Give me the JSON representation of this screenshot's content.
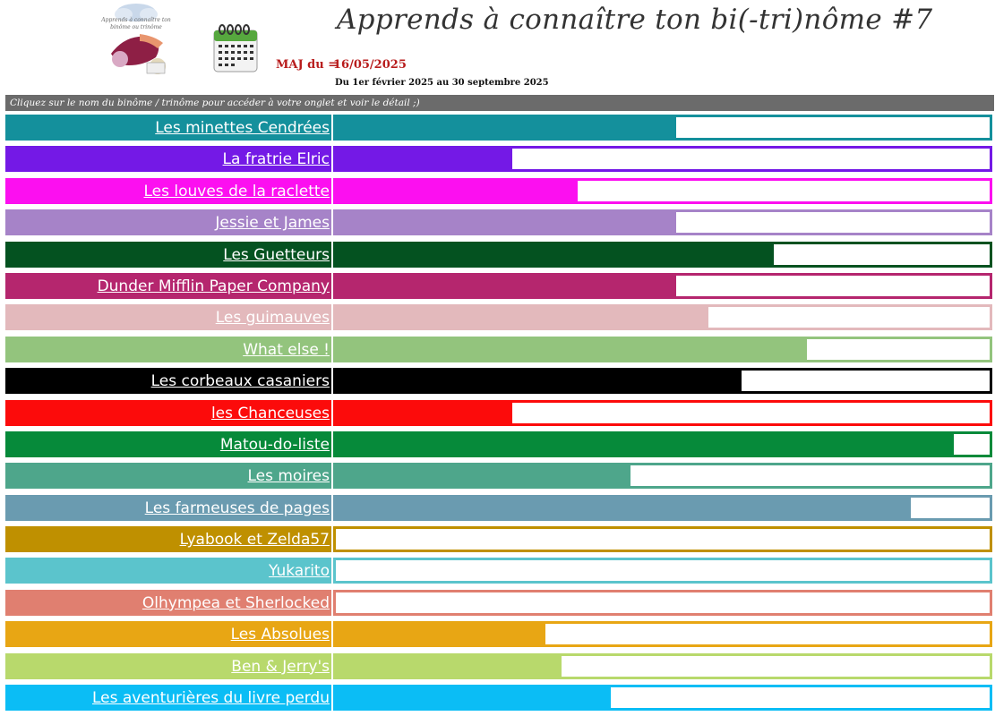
{
  "header": {
    "title": "Apprends à connaître ton bi(-tri)nôme #7",
    "maj_label": "MAJ du =",
    "maj_date": "16/05/2025",
    "period": "Du 1er février 2025 au 30 septembre 2025",
    "instruction": "Cliquez sur le nom du binôme / trinôme pour accéder à votre onglet et voir le détail ;)"
  },
  "icons": {
    "logo": "challenge-logo",
    "calendar": "calendar-icon"
  },
  "teams": [
    {
      "name": "Les minettes Cendrées",
      "progress": 0.52,
      "color": "#14909c"
    },
    {
      "name": "La fratrie Elric",
      "progress": 0.27,
      "color": "#7419e6"
    },
    {
      "name": "Les louves de la raclette",
      "progress": 0.37,
      "color": "#fc0ff0"
    },
    {
      "name": "Jessie et James",
      "progress": 0.52,
      "color": "#a683c8"
    },
    {
      "name": "Les Guetteurs",
      "progress": 0.67,
      "color": "#045220"
    },
    {
      "name": "Dunder Mifflin Paper Company",
      "progress": 0.52,
      "color": "#b5266e"
    },
    {
      "name": "Les guimauves",
      "progress": 0.57,
      "color": "#e3b9bc"
    },
    {
      "name": "What else !",
      "progress": 0.72,
      "color": "#93c47d"
    },
    {
      "name": "Les corbeaux casaniers",
      "progress": 0.62,
      "color": "#000000"
    },
    {
      "name": "les Chanceuses",
      "progress": 0.27,
      "color": "#fc0b0b"
    },
    {
      "name": "Matou-do-liste",
      "progress": 0.945,
      "color": "#068a3a"
    },
    {
      "name": "Les moires",
      "progress": 0.45,
      "color": "#4ea68b"
    },
    {
      "name": "Les farmeuses de pages",
      "progress": 0.88,
      "color": "#6a9bb0"
    },
    {
      "name": "Lyabook et Zelda57",
      "progress": 0.0,
      "color": "#bf9000"
    },
    {
      "name": "Yukarito",
      "progress": 0.0,
      "color": "#5bc4cc"
    },
    {
      "name": "Olhympea et Sherlocked",
      "progress": 0.0,
      "color": "#e07f70"
    },
    {
      "name": "Les Absolues",
      "progress": 0.32,
      "color": "#e8a614"
    },
    {
      "name": "Ben & Jerry's",
      "progress": 0.345,
      "color": "#b8d96c"
    },
    {
      "name": "Les aventurières du livre perdu",
      "progress": 0.42,
      "color": "#0bbdf5"
    }
  ]
}
